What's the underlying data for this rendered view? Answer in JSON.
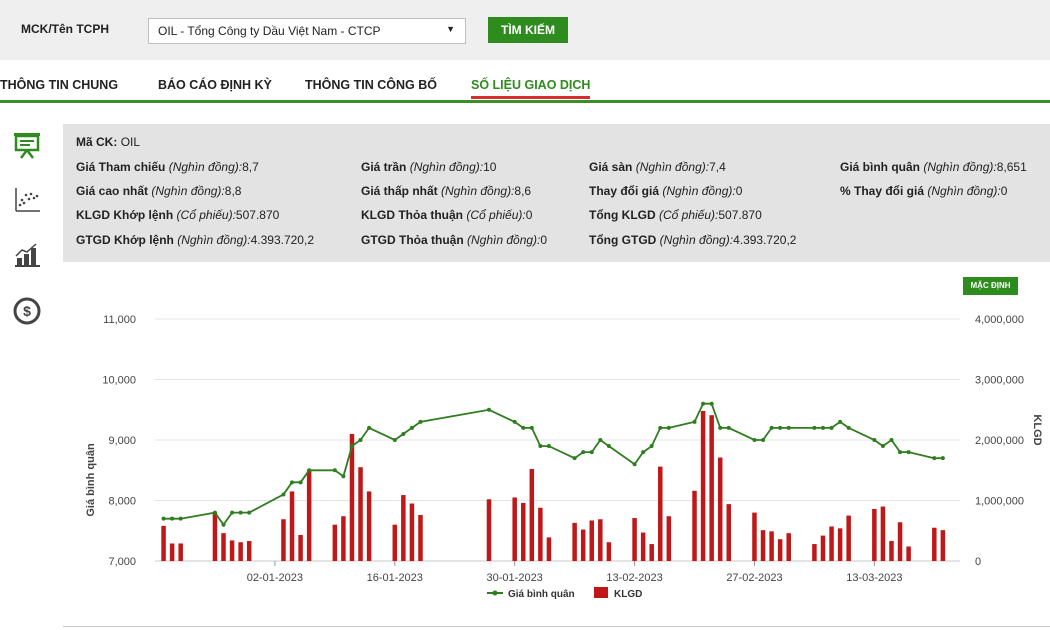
{
  "search": {
    "label": "MCK/Tên TCPH",
    "selected": "OIL - Tổng Công ty Dầu Việt Nam - CTCP",
    "button_label": "TÌM KIẾM"
  },
  "tabs": [
    {
      "label": "THÔNG TIN CHUNG",
      "active": false
    },
    {
      "label": "BÁO CÁO ĐỊNH KỲ",
      "active": false
    },
    {
      "label": "THÔNG TIN CÔNG BỐ",
      "active": false
    },
    {
      "label": "SỐ LIỆU GIAO DỊCH",
      "active": true
    }
  ],
  "sidebar_icons": [
    "presentation-board-icon",
    "scatter-chart-icon",
    "bar-chart-icon",
    "dollar-circle-icon"
  ],
  "info": {
    "ticker_label": "Mã CK:",
    "ticker_value": "OIL",
    "rows": [
      [
        {
          "label": "Giá Tham chiếu",
          "unit": "(Nghìn đồng):",
          "value": "8,7"
        },
        {
          "label": "Giá trần",
          "unit": "(Nghìn đồng):",
          "value": "10"
        },
        {
          "label": "Giá sàn",
          "unit": "(Nghìn đồng):",
          "value": "7,4"
        },
        {
          "label": "Giá bình quân",
          "unit": "(Nghìn đồng):",
          "value": "8,651"
        }
      ],
      [
        {
          "label": "Giá cao nhất",
          "unit": "(Nghìn đồng):",
          "value": "8,8"
        },
        {
          "label": "Giá thấp nhất",
          "unit": "(Nghìn đồng):",
          "value": "8,6"
        },
        {
          "label": "Thay đổi giá",
          "unit": "(Nghìn đồng):",
          "value": "0"
        },
        {
          "label": "% Thay đổi giá",
          "unit": "(Nghìn đồng):",
          "value": "0"
        }
      ],
      [
        {
          "label": "KLGD Khớp lệnh",
          "unit": "(Cổ phiếu):",
          "value": "507.870"
        },
        {
          "label": "KLGD Thỏa thuận",
          "unit": "(Cổ phiếu):",
          "value": "0"
        },
        {
          "label": "Tổng KLGD",
          "unit": "(Cổ phiếu):",
          "value": "507.870"
        }
      ],
      [
        {
          "label": "GTGD Khớp lệnh",
          "unit": "(Nghìn đồng):",
          "value": "4.393.720,2"
        },
        {
          "label": "GTGD Thỏa thuận",
          "unit": "(Nghìn đồng):",
          "value": "0"
        },
        {
          "label": "Tổng GTGD",
          "unit": "(Nghìn đồng):",
          "value": "4.393.720,2"
        }
      ]
    ]
  },
  "chart_button": "MẶC ĐỊNH",
  "chart_data": {
    "type": "bar+line",
    "ylabel_left": "Giá bình quân",
    "ylabel_right": "KLGD",
    "ylim_left": [
      7000,
      11000
    ],
    "ylim_right": [
      0,
      4000000
    ],
    "yticks_left": [
      "7,000",
      "8,000",
      "9,000",
      "10,000",
      "11,000"
    ],
    "yticks_right": [
      "0",
      "1,000,000",
      "2,000,000",
      "3,000,000",
      "4,000,000"
    ],
    "xlim": [
      "2022-12-19",
      "2023-03-23"
    ],
    "xticks": [
      {
        "date": "2023-01-02",
        "label": "02-01-2023"
      },
      {
        "date": "2023-01-16",
        "label": "16-01-2023"
      },
      {
        "date": "2023-01-30",
        "label": "30-01-2023"
      },
      {
        "date": "2023-02-13",
        "label": "13-02-2023"
      },
      {
        "date": "2023-02-27",
        "label": "27-02-2023"
      },
      {
        "date": "2023-03-13",
        "label": "13-03-2023"
      }
    ],
    "grid": true,
    "legend_position": "bottom",
    "colors": {
      "line": "#2e7d1e",
      "bar": "#c01818"
    },
    "series": [
      {
        "name": "Giá bình quân",
        "kind": "line",
        "values": [
          [
            "2022-12-20",
            7700
          ],
          [
            "2022-12-21",
            7700
          ],
          [
            "2022-12-22",
            7700
          ],
          [
            "2022-12-26",
            7800
          ],
          [
            "2022-12-27",
            7600
          ],
          [
            "2022-12-28",
            7800
          ],
          [
            "2022-12-29",
            7800
          ],
          [
            "2022-12-30",
            7800
          ],
          [
            "2023-01-03",
            8100
          ],
          [
            "2023-01-04",
            8300
          ],
          [
            "2023-01-05",
            8300
          ],
          [
            "2023-01-06",
            8500
          ],
          [
            "2023-01-09",
            8500
          ],
          [
            "2023-01-10",
            8400
          ],
          [
            "2023-01-11",
            8900
          ],
          [
            "2023-01-12",
            9000
          ],
          [
            "2023-01-13",
            9200
          ],
          [
            "2023-01-16",
            9000
          ],
          [
            "2023-01-17",
            9100
          ],
          [
            "2023-01-18",
            9200
          ],
          [
            "2023-01-19",
            9300
          ],
          [
            "2023-01-27",
            9500
          ],
          [
            "2023-01-30",
            9300
          ],
          [
            "2023-01-31",
            9200
          ],
          [
            "2023-02-01",
            9200
          ],
          [
            "2023-02-02",
            8900
          ],
          [
            "2023-02-03",
            8900
          ],
          [
            "2023-02-06",
            8700
          ],
          [
            "2023-02-07",
            8800
          ],
          [
            "2023-02-08",
            8800
          ],
          [
            "2023-02-09",
            9000
          ],
          [
            "2023-02-10",
            8900
          ],
          [
            "2023-02-13",
            8600
          ],
          [
            "2023-02-14",
            8800
          ],
          [
            "2023-02-15",
            8900
          ],
          [
            "2023-02-16",
            9200
          ],
          [
            "2023-02-17",
            9200
          ],
          [
            "2023-02-20",
            9300
          ],
          [
            "2023-02-21",
            9600
          ],
          [
            "2023-02-22",
            9600
          ],
          [
            "2023-02-23",
            9200
          ],
          [
            "2023-02-24",
            9200
          ],
          [
            "2023-02-27",
            9000
          ],
          [
            "2023-02-28",
            9000
          ],
          [
            "2023-03-01",
            9200
          ],
          [
            "2023-03-02",
            9200
          ],
          [
            "2023-03-03",
            9200
          ],
          [
            "2023-03-06",
            9200
          ],
          [
            "2023-03-07",
            9200
          ],
          [
            "2023-03-08",
            9200
          ],
          [
            "2023-03-09",
            9300
          ],
          [
            "2023-03-10",
            9200
          ],
          [
            "2023-03-13",
            9000
          ],
          [
            "2023-03-14",
            8900
          ],
          [
            "2023-03-15",
            9000
          ],
          [
            "2023-03-16",
            8800
          ],
          [
            "2023-03-17",
            8800
          ],
          [
            "2023-03-20",
            8700
          ],
          [
            "2023-03-21",
            8700
          ]
        ]
      },
      {
        "name": "KLGD",
        "kind": "bar",
        "values": [
          [
            "2022-12-20",
            580000
          ],
          [
            "2022-12-21",
            290000
          ],
          [
            "2022-12-22",
            290000
          ],
          [
            "2022-12-26",
            800000
          ],
          [
            "2022-12-27",
            460000
          ],
          [
            "2022-12-28",
            340000
          ],
          [
            "2022-12-29",
            310000
          ],
          [
            "2022-12-30",
            330000
          ],
          [
            "2023-01-03",
            690000
          ],
          [
            "2023-01-04",
            1150000
          ],
          [
            "2023-01-05",
            430000
          ],
          [
            "2023-01-06",
            1500000
          ],
          [
            "2023-01-09",
            600000
          ],
          [
            "2023-01-10",
            740000
          ],
          [
            "2023-01-11",
            2100000
          ],
          [
            "2023-01-12",
            1550000
          ],
          [
            "2023-01-13",
            1150000
          ],
          [
            "2023-01-16",
            600000
          ],
          [
            "2023-01-17",
            1090000
          ],
          [
            "2023-01-18",
            950000
          ],
          [
            "2023-01-19",
            760000
          ],
          [
            "2023-01-27",
            1020000
          ],
          [
            "2023-01-30",
            1050000
          ],
          [
            "2023-01-31",
            960000
          ],
          [
            "2023-02-01",
            1520000
          ],
          [
            "2023-02-02",
            880000
          ],
          [
            "2023-02-03",
            390000
          ],
          [
            "2023-02-06",
            630000
          ],
          [
            "2023-02-07",
            520000
          ],
          [
            "2023-02-08",
            670000
          ],
          [
            "2023-02-09",
            690000
          ],
          [
            "2023-02-10",
            310000
          ],
          [
            "2023-02-13",
            710000
          ],
          [
            "2023-02-14",
            470000
          ],
          [
            "2023-02-15",
            280000
          ],
          [
            "2023-02-16",
            1560000
          ],
          [
            "2023-02-17",
            740000
          ],
          [
            "2023-02-20",
            1160000
          ],
          [
            "2023-02-21",
            2480000
          ],
          [
            "2023-02-22",
            2410000
          ],
          [
            "2023-02-23",
            1710000
          ],
          [
            "2023-02-24",
            940000
          ],
          [
            "2023-02-27",
            800000
          ],
          [
            "2023-02-28",
            510000
          ],
          [
            "2023-03-01",
            490000
          ],
          [
            "2023-03-02",
            360000
          ],
          [
            "2023-03-03",
            460000
          ],
          [
            "2023-03-06",
            280000
          ],
          [
            "2023-03-07",
            420000
          ],
          [
            "2023-03-08",
            570000
          ],
          [
            "2023-03-09",
            540000
          ],
          [
            "2023-03-10",
            750000
          ],
          [
            "2023-03-13",
            860000
          ],
          [
            "2023-03-14",
            900000
          ],
          [
            "2023-03-15",
            330000
          ],
          [
            "2023-03-16",
            640000
          ],
          [
            "2023-03-17",
            240000
          ],
          [
            "2023-03-20",
            550000
          ],
          [
            "2023-03-21",
            510000
          ]
        ]
      }
    ]
  }
}
